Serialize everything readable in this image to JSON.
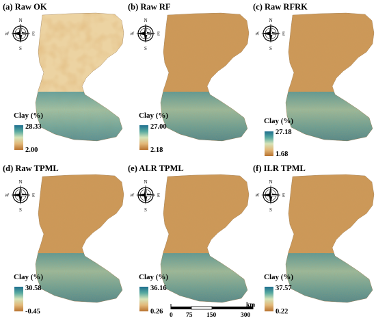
{
  "panels": [
    {
      "title": "(a) Raw OK",
      "legend_title": "Clay (%)",
      "max": "28.33",
      "min": "2.00",
      "texture": "smooth"
    },
    {
      "title": "(b) Raw RF",
      "legend_title": "Clay (%)",
      "max": "27.00",
      "min": "2.18",
      "texture": "fine"
    },
    {
      "title": "(c) Raw RFRK",
      "legend_title": "Clay (%)",
      "max": "27.18",
      "min": "1.68",
      "texture": "fine"
    },
    {
      "title": "(d) Raw TPML",
      "legend_title": "Clay (%)",
      "max": "30.58",
      "min": "-0.45",
      "texture": "fine"
    },
    {
      "title": "(e) ALR TPML",
      "legend_title": "Clay (%)",
      "max": "36.16",
      "min": "0.26",
      "texture": "fine"
    },
    {
      "title": "(f) ILR TPML",
      "legend_title": "Clay (%)",
      "max": "37.57",
      "min": "0.22",
      "texture": "fine"
    }
  ],
  "compass_letters": {
    "n": "N",
    "s": "S",
    "e": "E",
    "w": "W"
  },
  "scale_bar": {
    "ticks": [
      "0",
      "75",
      "150",
      "300"
    ],
    "unit": "km"
  },
  "colors": {
    "high": "#1e6f8e",
    "mid_high": "#57a9a0",
    "mid": "#d6e3b8",
    "mid_low": "#e2b878",
    "low": "#b8722f"
  }
}
